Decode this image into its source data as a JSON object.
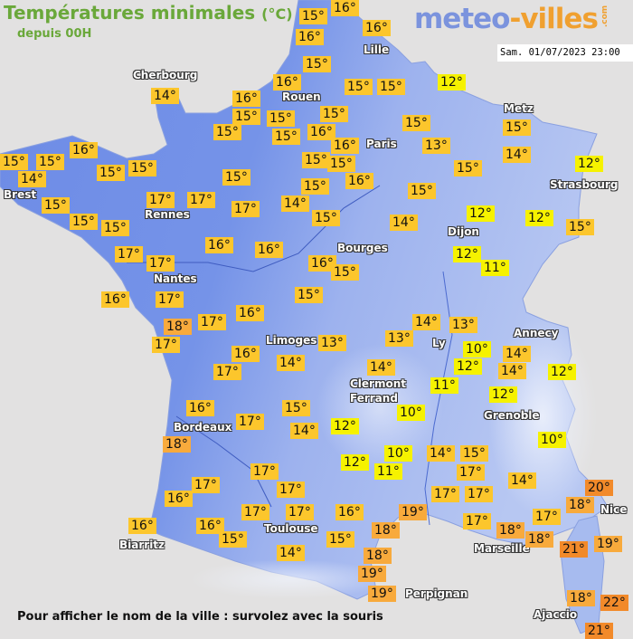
{
  "header": {
    "title": "Températures minimales",
    "unit": "(°C)",
    "subtitle": "depuis 00H",
    "logo": {
      "part1": "meteo",
      "part2": "-villes",
      "part3": ".com"
    },
    "datetime": "Sam. 01/07/2023 23:00"
  },
  "colors": {
    "land_west": "#6f8de6",
    "land_east": "#a8bcef",
    "sea": "#e2e1e1",
    "label_cold": "#f6f200",
    "label_mild": "#fcc62c",
    "label_warm": "#f8aa3c",
    "label_hot": "#f28a2a",
    "title_green": "#6aa83a"
  },
  "cities": [
    "Lille",
    "Cherbourg",
    "Rouen",
    "Paris",
    "Metz",
    "Strasbourg",
    "Brest",
    "Rennes",
    "Dijon",
    "Nantes",
    "Bourges",
    "Limoges",
    "Ly",
    "Annecy",
    "Clermont",
    "Ferrand",
    "Grenoble",
    "Bordeaux",
    "Toulouse",
    "Biarritz",
    "Marseille",
    "Nice",
    "Perpignan",
    "Ajaccio"
  ],
  "temperatures": [
    "15°",
    "16°",
    "16°",
    "16°",
    "15°",
    "16°",
    "16°",
    "15°",
    "15°",
    "15°",
    "15°",
    "16°",
    "15°",
    "15°",
    "15°",
    "12°",
    "15°",
    "13°",
    "16°",
    "15°",
    "16°",
    "15°",
    "15°",
    "14°",
    "15°",
    "15°",
    "14°",
    "15°",
    "15°",
    "14°",
    "12°",
    "12°",
    "12°",
    "15°",
    "12°",
    "11°",
    "15°",
    "14°",
    "15°",
    "16°",
    "15°",
    "15°",
    "15°",
    "15°",
    "15°",
    "17°",
    "17°",
    "15°",
    "17°",
    "14°",
    "17°",
    "17°",
    "16°",
    "16°",
    "16°",
    "15°",
    "15°",
    "16°",
    "17°",
    "18°",
    "17°",
    "16°",
    "17°",
    "16°",
    "17°",
    "14°",
    "13°",
    "13°",
    "14°",
    "13°",
    "10°",
    "12°",
    "14°",
    "14°",
    "12°",
    "14°",
    "11°",
    "12°",
    "10°",
    "12°",
    "15°",
    "14°",
    "17°",
    "16°",
    "18°",
    "17°",
    "17°",
    "16°",
    "16°",
    "16°",
    "15°",
    "17°",
    "17°",
    "17°",
    "14°",
    "16°",
    "15°",
    "12°",
    "10°",
    "11°",
    "14°",
    "15°",
    "17°",
    "17°",
    "17°",
    "19°",
    "18°",
    "18°",
    "19°",
    "19°",
    "17°",
    "18°",
    "18°",
    "14°",
    "17°",
    "10°",
    "20°",
    "18°",
    "21°",
    "19°",
    "18°",
    "22°",
    "21°"
  ],
  "footer": "Pour afficher le nom de la ville : survolez avec la souris"
}
